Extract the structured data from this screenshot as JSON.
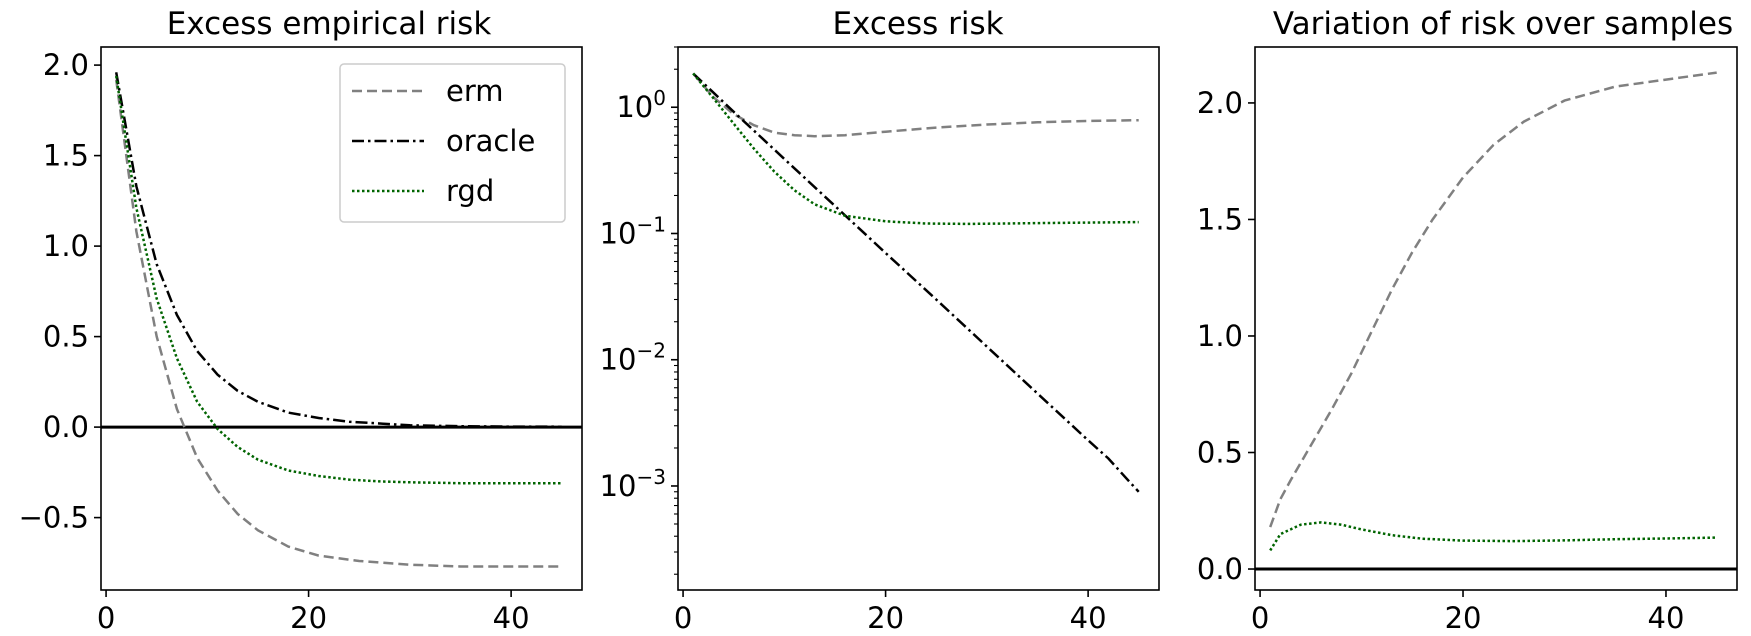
{
  "chart_data": [
    {
      "type": "line",
      "title": "Excess empirical risk",
      "xlabel": "",
      "ylabel": "",
      "xlim": [
        -0.5,
        47
      ],
      "ylim": [
        -0.9,
        2.1
      ],
      "xticks": [
        0,
        20,
        40
      ],
      "xtick_labels": [
        "0",
        "20",
        "40"
      ],
      "yticks": [
        2.0,
        1.5,
        1.0,
        0.5,
        0.0,
        -0.5
      ],
      "ytick_labels": [
        "2.0",
        "1.5",
        "1.0",
        "0.5",
        "0.0",
        "−0.5"
      ],
      "yscale": "linear",
      "legend": {
        "position": "top-right",
        "entries": [
          "erm",
          "oracle",
          "rgd"
        ]
      },
      "hline": 0.0,
      "series": [
        {
          "name": "erm",
          "color": "#808080",
          "dash": "dashed",
          "x": [
            1,
            3,
            5,
            7,
            9,
            11,
            13,
            15,
            18,
            21,
            25,
            30,
            35,
            40,
            45
          ],
          "y": [
            1.92,
            1.08,
            0.5,
            0.1,
            -0.17,
            -0.35,
            -0.48,
            -0.57,
            -0.66,
            -0.71,
            -0.74,
            -0.76,
            -0.77,
            -0.77,
            -0.77
          ]
        },
        {
          "name": "oracle",
          "color": "#000000",
          "dash": "dashdot",
          "x": [
            1,
            3,
            5,
            7,
            9,
            11,
            13,
            15,
            18,
            21,
            24,
            27,
            30,
            35,
            40,
            45
          ],
          "y": [
            1.96,
            1.33,
            0.9,
            0.62,
            0.42,
            0.29,
            0.2,
            0.14,
            0.08,
            0.05,
            0.03,
            0.02,
            0.01,
            0.005,
            0.003,
            0.002
          ]
        },
        {
          "name": "rgd",
          "color": "#006400",
          "dash": "dotted",
          "x": [
            1,
            3,
            5,
            7,
            9,
            11,
            13,
            15,
            18,
            21,
            24,
            27,
            30,
            35,
            40,
            45
          ],
          "y": [
            1.94,
            1.21,
            0.71,
            0.38,
            0.14,
            -0.01,
            -0.11,
            -0.18,
            -0.24,
            -0.27,
            -0.29,
            -0.3,
            -0.305,
            -0.31,
            -0.31,
            -0.31
          ]
        }
      ]
    },
    {
      "type": "line",
      "title": "Excess risk",
      "xlabel": "",
      "ylabel": "",
      "xlim": [
        -0.5,
        47
      ],
      "ylim": [
        0.00015,
        3.0
      ],
      "xticks": [
        0,
        20,
        40
      ],
      "xtick_labels": [
        "0",
        "20",
        "40"
      ],
      "yscale": "log",
      "yticks": [
        1,
        0.1,
        0.01,
        0.001
      ],
      "ytick_labels": [
        {
          "base": "10",
          "exp": "0"
        },
        {
          "base": "10",
          "exp": "−1"
        },
        {
          "base": "10",
          "exp": "−2"
        },
        {
          "base": "10",
          "exp": "−3"
        }
      ],
      "series": [
        {
          "name": "erm",
          "color": "#808080",
          "dash": "dashed",
          "x": [
            1,
            3,
            5,
            7,
            9,
            11,
            13,
            16,
            20,
            25,
            30,
            35,
            40,
            45
          ],
          "y": [
            1.85,
            1.2,
            0.88,
            0.72,
            0.63,
            0.6,
            0.59,
            0.6,
            0.64,
            0.69,
            0.73,
            0.76,
            0.78,
            0.79
          ]
        },
        {
          "name": "oracle",
          "color": "#000000",
          "dash": "dashdot",
          "x": [
            1,
            5,
            10,
            15,
            20,
            25,
            30,
            35,
            40,
            42,
            44,
            45
          ],
          "y": [
            1.85,
            0.92,
            0.39,
            0.165,
            0.07,
            0.03,
            0.0127,
            0.0054,
            0.0023,
            0.00165,
            0.0011,
            0.0009
          ]
        },
        {
          "name": "rgd",
          "color": "#006400",
          "dash": "dotted",
          "x": [
            1,
            3,
            5,
            7,
            9,
            11,
            13,
            16,
            20,
            24,
            28,
            32,
            36,
            40,
            45
          ],
          "y": [
            1.85,
            1.18,
            0.74,
            0.47,
            0.31,
            0.22,
            0.17,
            0.138,
            0.125,
            0.12,
            0.119,
            0.12,
            0.121,
            0.122,
            0.123
          ]
        }
      ]
    },
    {
      "type": "line",
      "title": "Variation of risk over samples",
      "xlabel": "",
      "ylabel": "",
      "xlim": [
        -0.5,
        47
      ],
      "ylim": [
        -0.09,
        2.24
      ],
      "xticks": [
        0,
        20,
        40
      ],
      "xtick_labels": [
        "0",
        "20",
        "40"
      ],
      "yticks": [
        2.0,
        1.5,
        1.0,
        0.5,
        0.0
      ],
      "ytick_labels": [
        "2.0",
        "1.5",
        "1.0",
        "0.5",
        "0.0"
      ],
      "yscale": "linear",
      "hline": 0.0,
      "series": [
        {
          "name": "erm",
          "color": "#808080",
          "dash": "dashed",
          "x": [
            1,
            2,
            3,
            5,
            7,
            9,
            11,
            13,
            15,
            17,
            20,
            23,
            26,
            30,
            35,
            40,
            45
          ],
          "y": [
            0.18,
            0.3,
            0.38,
            0.53,
            0.68,
            0.84,
            1.02,
            1.2,
            1.36,
            1.5,
            1.68,
            1.82,
            1.92,
            2.01,
            2.07,
            2.1,
            2.13
          ]
        },
        {
          "name": "rgd",
          "color": "#006400",
          "dash": "dotted",
          "x": [
            1,
            2,
            4,
            6,
            8,
            10,
            13,
            16,
            20,
            25,
            30,
            35,
            40,
            45
          ],
          "y": [
            0.08,
            0.15,
            0.19,
            0.2,
            0.19,
            0.17,
            0.145,
            0.13,
            0.122,
            0.12,
            0.123,
            0.128,
            0.131,
            0.135
          ]
        }
      ]
    }
  ]
}
